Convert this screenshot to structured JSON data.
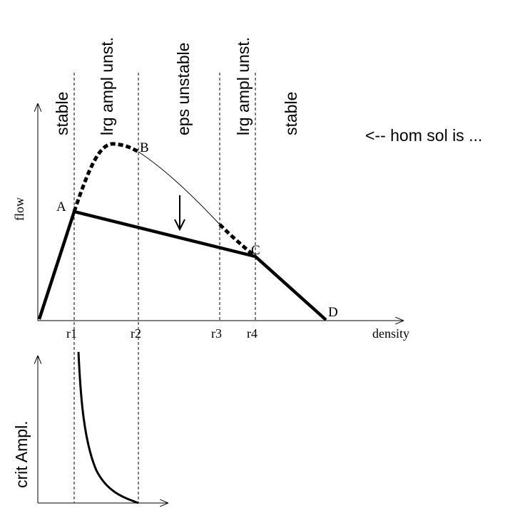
{
  "regions": [
    "stable",
    "lrg ampl unst.",
    "eps unstable",
    "lrg ampl unst.",
    "stable"
  ],
  "annotation": "<-- hom sol is ...",
  "top_plot": {
    "y_axis_label": "flow",
    "x_axis_label": "density",
    "x_ticks": [
      "r1",
      "r2",
      "r3",
      "r4"
    ],
    "points": [
      "A",
      "B",
      "C",
      "D"
    ]
  },
  "bottom_plot": {
    "y_axis_label": "crit Ampl."
  }
}
